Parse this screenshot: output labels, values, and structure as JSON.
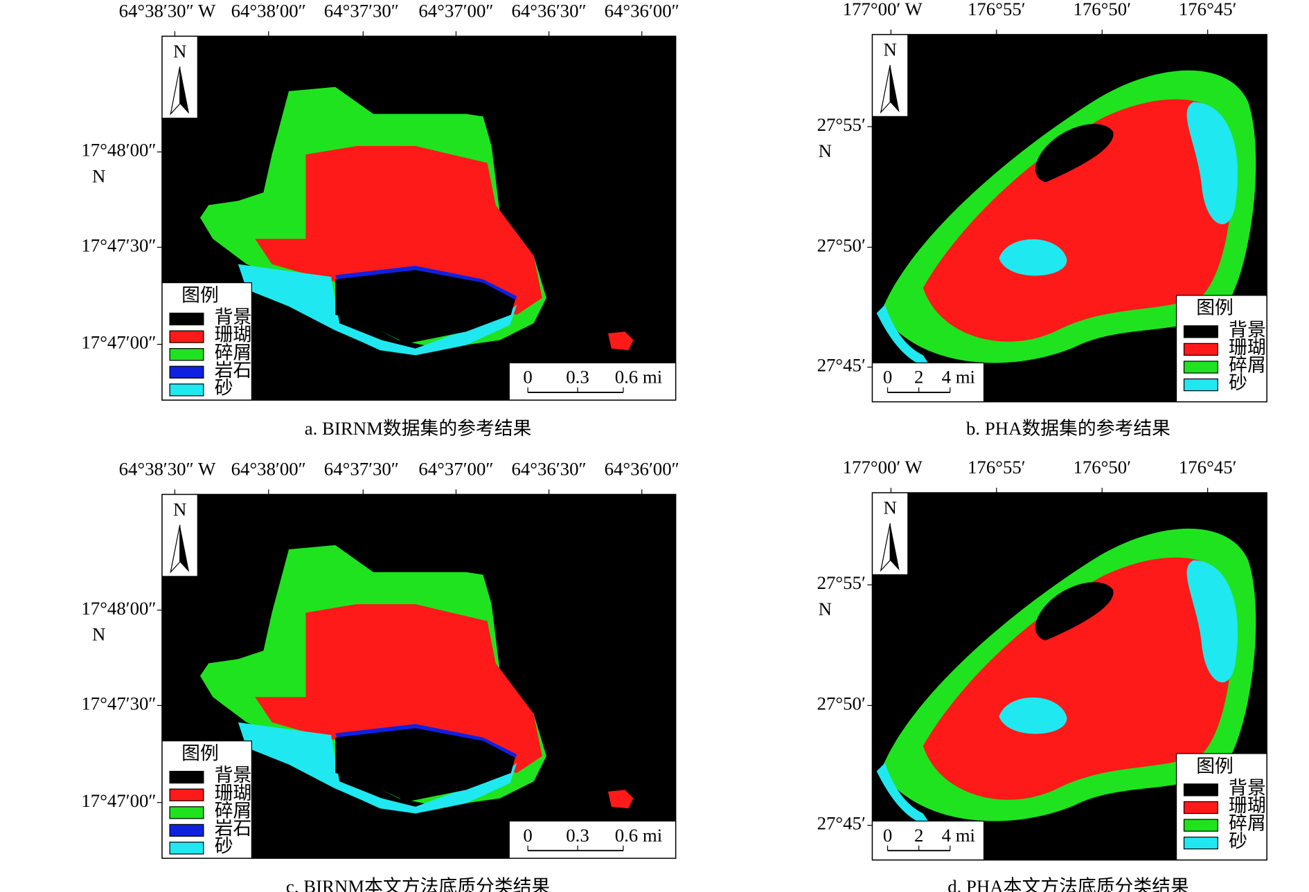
{
  "panels": [
    {
      "lon_labels": [
        "64°38′30″ W",
        "64°38′00″",
        "64°37′30″",
        "64°37′00″",
        "64°36′30″",
        "64°36′00″"
      ],
      "lat_labels": [
        "17°48′00″",
        "17°47′30″",
        "17°47′00″"
      ],
      "lat_hemisphere": "N",
      "north": "N",
      "legend_title": "图例",
      "legend": [
        {
          "label": "背景",
          "color": "#000000"
        },
        {
          "label": "珊瑚",
          "color": "#ff1a1a"
        },
        {
          "label": "碎屑",
          "color": "#1fe31f"
        },
        {
          "label": "岩石",
          "color": "#1020e0"
        },
        {
          "label": "砂",
          "color": "#20e8f0"
        }
      ],
      "scale_labels": [
        "0",
        "0.3",
        "0.6 mi"
      ],
      "caption": "a. BIRNM数据集的参考结果"
    },
    {
      "lon_labels": [
        "177°00′ W",
        "176°55′",
        "176°50′",
        "176°45′"
      ],
      "lat_labels": [
        "27°55′",
        "27°50′",
        "27°45′"
      ],
      "lat_hemisphere": "N",
      "north": "N",
      "legend_title": "图例",
      "legend": [
        {
          "label": "背景",
          "color": "#000000"
        },
        {
          "label": "珊瑚",
          "color": "#ff1a1a"
        },
        {
          "label": "碎屑",
          "color": "#1fe31f"
        },
        {
          "label": "砂",
          "color": "#20e8f0"
        }
      ],
      "scale_labels": [
        "0",
        "2",
        "4 mi"
      ],
      "caption": "b. PHA数据集的参考结果"
    },
    {
      "lon_labels": [
        "64°38′30″ W",
        "64°38′00″",
        "64°37′30″",
        "64°37′00″",
        "64°36′30″",
        "64°36′00″"
      ],
      "lat_labels": [
        "17°48′00″",
        "17°47′30″",
        "17°47′00″"
      ],
      "lat_hemisphere": "N",
      "north": "N",
      "legend_title": "图例",
      "legend": [
        {
          "label": "背景",
          "color": "#000000"
        },
        {
          "label": "珊瑚",
          "color": "#ff1a1a"
        },
        {
          "label": "碎屑",
          "color": "#1fe31f"
        },
        {
          "label": "岩石",
          "color": "#1020e0"
        },
        {
          "label": "砂",
          "color": "#20e8f0"
        }
      ],
      "scale_labels": [
        "0",
        "0.3",
        "0.6 mi"
      ],
      "caption": "c. BIRNM本文方法底质分类结果"
    },
    {
      "lon_labels": [
        "177°00′ W",
        "176°55′",
        "176°50′",
        "176°45′"
      ],
      "lat_labels": [
        "27°55′",
        "27°50′",
        "27°45′"
      ],
      "lat_hemisphere": "N",
      "north": "N",
      "legend_title": "图例",
      "legend": [
        {
          "label": "背景",
          "color": "#000000"
        },
        {
          "label": "珊瑚",
          "color": "#ff1a1a"
        },
        {
          "label": "碎屑",
          "color": "#1fe31f"
        },
        {
          "label": "砂",
          "color": "#20e8f0"
        }
      ],
      "scale_labels": [
        "0",
        "2",
        "4 mi"
      ],
      "caption": "d. PHA本文方法底质分类结果"
    }
  ]
}
